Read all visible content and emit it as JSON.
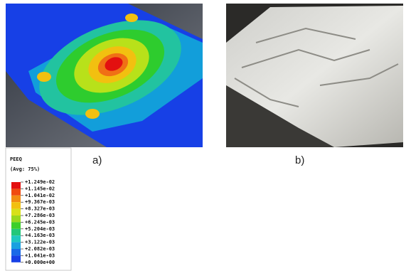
{
  "figure": {
    "panels": [
      {
        "label": "a)"
      },
      {
        "label": "b)"
      }
    ],
    "legend": {
      "title": "PEEQ",
      "subtitle": "(Avg: 75%)",
      "labels": [
        "+1.249e-02",
        "+1.145e-02",
        "+1.041e-02",
        "+9.367e-03",
        "+8.327e-03",
        "+7.286e-03",
        "+6.245e-03",
        "+5.204e-03",
        "+4.163e-03",
        "+3.122e-03",
        "+2.082e-03",
        "+1.041e-03",
        "+0.000e+00"
      ]
    }
  }
}
